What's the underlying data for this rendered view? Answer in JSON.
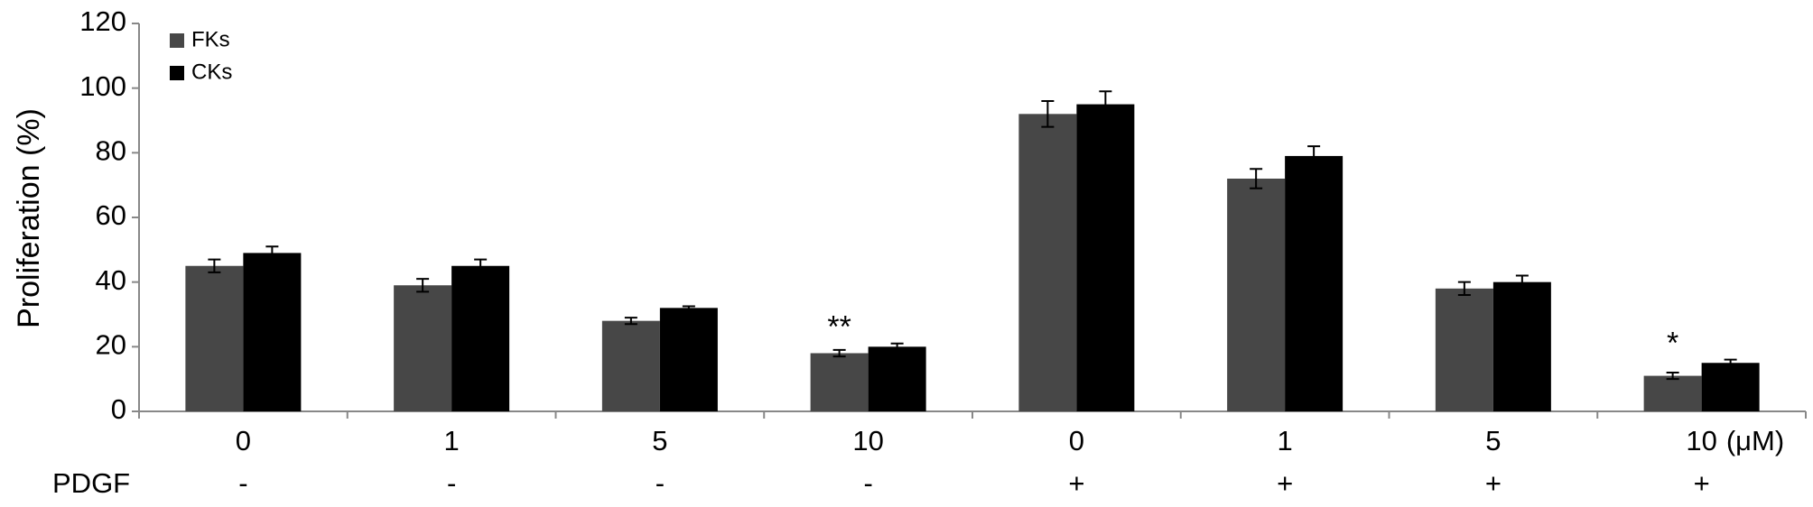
{
  "chart_data": {
    "type": "bar",
    "ylabel": "Proliferation (%)",
    "categories": [
      "0",
      "1",
      "5",
      "10",
      "0",
      "1",
      "5",
      "10"
    ],
    "unit_label": "(μM)",
    "row_label": "PDGF",
    "row_values": [
      "-",
      "-",
      "-",
      "-",
      "+",
      "+",
      "+",
      "+"
    ],
    "series": [
      {
        "name": "FKs",
        "color": "#474747",
        "values": [
          45,
          39,
          28,
          18,
          92,
          72,
          38,
          11
        ],
        "errors": [
          2,
          2,
          1,
          1,
          4,
          3,
          2,
          1
        ]
      },
      {
        "name": "CKs",
        "color": "#000000",
        "values": [
          49,
          45,
          32,
          20,
          95,
          79,
          40,
          15
        ],
        "errors": [
          2,
          2,
          0.5,
          1,
          4,
          3,
          2,
          1
        ]
      }
    ],
    "significance": [
      null,
      null,
      null,
      "**",
      null,
      null,
      null,
      "*"
    ],
    "ylim": [
      0,
      120
    ],
    "yticks": [
      0,
      20,
      40,
      60,
      80,
      100,
      120
    ],
    "grid": false,
    "legend": "upper left"
  }
}
